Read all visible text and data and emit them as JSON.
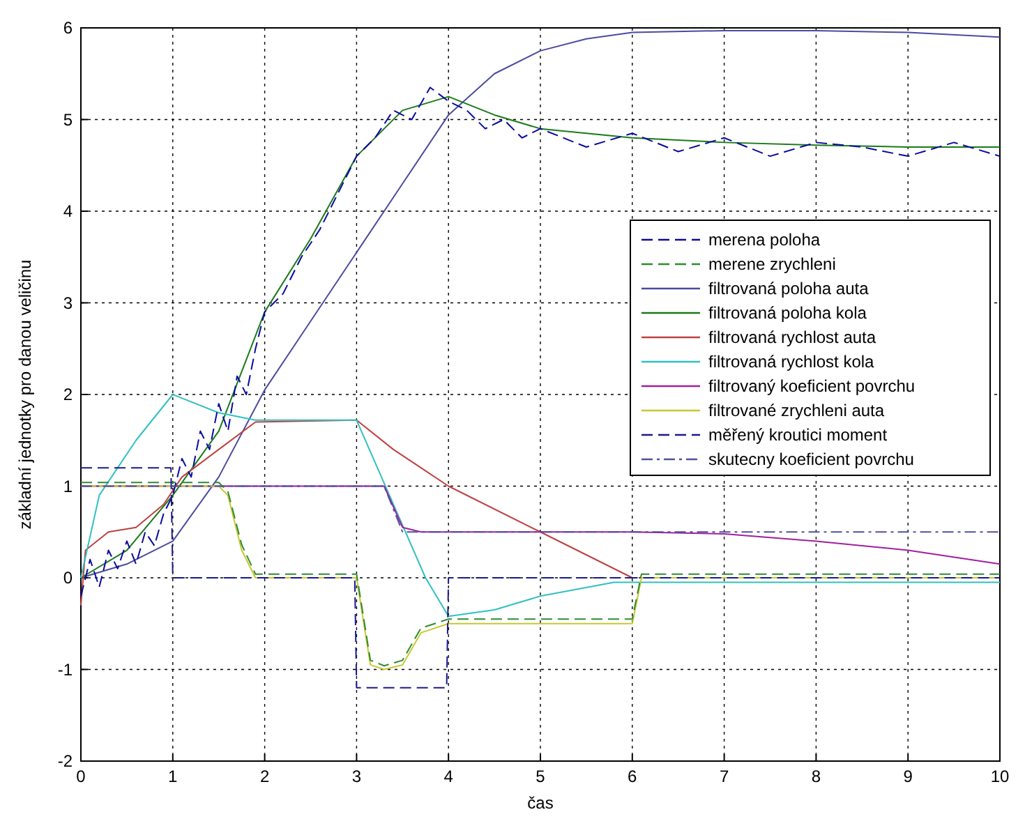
{
  "chart_data": {
    "type": "line",
    "xlabel": "čas",
    "ylabel": "základní jednotky pro danou veličinu",
    "xlim": [
      0,
      10
    ],
    "ylim": [
      -2,
      6
    ],
    "xticks": [
      0,
      1,
      2,
      3,
      4,
      5,
      6,
      7,
      8,
      9,
      10
    ],
    "yticks": [
      -2,
      -1,
      0,
      1,
      2,
      3,
      4,
      5,
      6
    ],
    "grid": true,
    "legend": "right",
    "marker": "none",
    "series": [
      {
        "name": "merena poloha",
        "color": "#0a0aa0",
        "line_style": "dashed",
        "x": [
          0,
          0.1,
          0.2,
          0.3,
          0.4,
          0.5,
          0.6,
          0.7,
          0.8,
          0.9,
          1,
          1.1,
          1.2,
          1.3,
          1.4,
          1.5,
          1.6,
          1.7,
          1.8,
          1.9,
          2,
          2.2,
          2.4,
          2.6,
          2.8,
          3,
          3.2,
          3.4,
          3.6,
          3.8,
          4,
          4.2,
          4.4,
          4.6,
          4.8,
          5,
          5.5,
          6,
          6.5,
          7,
          7.5,
          8,
          8.5,
          9,
          9.5,
          10
        ],
        "values": [
          -0.2,
          0.2,
          -0.1,
          0.3,
          0.1,
          0.4,
          0.15,
          0.5,
          0.35,
          0.7,
          0.9,
          1.3,
          1.1,
          1.6,
          1.4,
          1.9,
          1.6,
          2.2,
          2.0,
          2.5,
          2.9,
          3.1,
          3.5,
          3.8,
          4.2,
          4.6,
          4.8,
          5.1,
          5.0,
          5.35,
          5.2,
          5.1,
          4.9,
          5.0,
          4.8,
          4.9,
          4.7,
          4.85,
          4.65,
          4.8,
          4.6,
          4.75,
          4.7,
          4.6,
          4.75,
          4.6
        ]
      },
      {
        "name": "merene zrychleni",
        "color": "#2e8b2e",
        "line_style": "dashed",
        "x": [
          0,
          1.5,
          1.6,
          1.75,
          1.9,
          3,
          3.15,
          3.3,
          3.5,
          3.7,
          4,
          6,
          6.1,
          10
        ],
        "values": [
          1.04,
          1.04,
          0.94,
          0.36,
          0.04,
          0.04,
          -0.9,
          -0.96,
          -0.9,
          -0.55,
          -0.45,
          -0.45,
          0.04,
          0.04
        ]
      },
      {
        "name": "filtrovaná poloha auta",
        "color": "#4b4ba0",
        "line_style": "solid",
        "x": [
          0,
          0.5,
          1,
          1.5,
          2,
          2.5,
          3,
          3.5,
          4,
          4.5,
          5,
          5.5,
          6,
          7,
          8,
          9,
          10
        ],
        "values": [
          0,
          0.15,
          0.4,
          1.1,
          2.05,
          2.8,
          3.55,
          4.3,
          5.05,
          5.5,
          5.75,
          5.88,
          5.95,
          5.97,
          5.97,
          5.95,
          5.9
        ]
      },
      {
        "name": "filtrovaná poloha kola",
        "color": "#1a7a1a",
        "line_style": "solid",
        "x": [
          0,
          0.5,
          1,
          1.5,
          2,
          2.5,
          3,
          3.5,
          4,
          4.5,
          5,
          6,
          7,
          8,
          9,
          10
        ],
        "values": [
          0,
          0.3,
          0.9,
          1.6,
          2.9,
          3.7,
          4.6,
          5.1,
          5.25,
          5.05,
          4.9,
          4.8,
          4.75,
          4.72,
          4.7,
          4.7
        ]
      },
      {
        "name": "filtrovaná rychlost auta",
        "color": "#c04040",
        "line_style": "solid",
        "x": [
          0,
          0.05,
          0.3,
          0.6,
          0.9,
          1.1,
          1.5,
          1.9,
          3,
          3.4,
          3.7,
          4,
          5,
          6
        ],
        "values": [
          -0.3,
          0.3,
          0.5,
          0.55,
          0.8,
          1.1,
          1.4,
          1.7,
          1.72,
          1.4,
          1.2,
          1.0,
          0.5,
          0
        ]
      },
      {
        "name": "filtrovaná rychlost kola",
        "color": "#30c0c0",
        "line_style": "solid",
        "x": [
          0,
          0.2,
          0.6,
          1,
          1.5,
          1.9,
          3,
          3.75,
          4,
          4.5,
          5,
          5.8,
          6.1,
          7,
          8,
          9,
          10
        ],
        "values": [
          0,
          0.9,
          1.5,
          2.0,
          1.8,
          1.72,
          1.72,
          0,
          -0.42,
          -0.35,
          -0.2,
          -0.05,
          -0.05,
          -0.05,
          -0.05,
          -0.05,
          -0.05
        ]
      },
      {
        "name": "filtrovaný koeficient povrchu",
        "color": "#a020a0",
        "line_style": "solid",
        "x": [
          0,
          3.3,
          3.5,
          3.7,
          6,
          7,
          8,
          9,
          10
        ],
        "values": [
          1,
          1,
          0.55,
          0.5,
          0.5,
          0.48,
          0.4,
          0.3,
          0.15
        ]
      },
      {
        "name": "filtrované zrychleni auta",
        "color": "#c8c830",
        "line_style": "solid",
        "x": [
          0,
          1.5,
          1.6,
          1.75,
          1.9,
          3,
          3.15,
          3.3,
          3.5,
          3.7,
          4,
          6,
          6.1,
          10
        ],
        "values": [
          1,
          1,
          0.9,
          0.3,
          0,
          0,
          -0.95,
          -1,
          -0.95,
          -0.6,
          -0.5,
          -0.5,
          0,
          0
        ]
      },
      {
        "name": "měřený kroutici moment",
        "color": "#1a1a8a",
        "line_style": "dashed",
        "x": [
          0,
          0.98,
          1,
          2.98,
          3,
          3.98,
          4,
          10
        ],
        "values": [
          1.2,
          1.2,
          0,
          0,
          -1.2,
          -1.2,
          0,
          0
        ]
      },
      {
        "name": "skutecny koeficient povrchu",
        "color": "#5050a0",
        "line_style": "dashdot",
        "x": [
          0,
          3.3,
          3.5,
          10
        ],
        "values": [
          1,
          1,
          0.5,
          0.5
        ]
      }
    ]
  }
}
